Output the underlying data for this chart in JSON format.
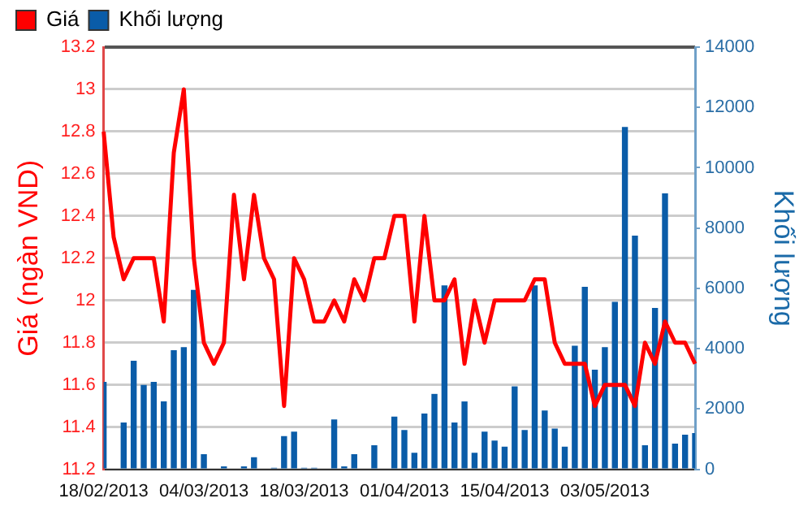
{
  "chart_data": {
    "type": "line",
    "categories": [
      "18/02/2013",
      null,
      null,
      null,
      null,
      null,
      null,
      null,
      null,
      null,
      "04/03/2013",
      null,
      null,
      null,
      null,
      null,
      null,
      null,
      null,
      null,
      "18/03/2013",
      null,
      null,
      null,
      null,
      null,
      null,
      null,
      null,
      null,
      "01/04/2013",
      null,
      null,
      null,
      null,
      null,
      null,
      null,
      null,
      null,
      "15/04/2013",
      null,
      null,
      null,
      null,
      null,
      null,
      null,
      null,
      null,
      "03/05/2013",
      null,
      null,
      null,
      null,
      null,
      null,
      null,
      null,
      null
    ],
    "series": [
      {
        "name": "Giá",
        "color": "#ff0000",
        "values": [
          12.8,
          12.3,
          12.1,
          12.2,
          12.2,
          12.2,
          11.9,
          12.7,
          13.0,
          12.2,
          11.8,
          11.7,
          11.8,
          12.5,
          12.1,
          12.5,
          12.2,
          12.1,
          11.5,
          12.2,
          12.1,
          11.9,
          11.9,
          12.0,
          11.9,
          12.1,
          12.0,
          12.2,
          12.2,
          12.4,
          12.4,
          11.9,
          12.4,
          12.0,
          12.0,
          12.1,
          11.7,
          12.0,
          11.8,
          12.0,
          12.0,
          12.0,
          12.0,
          12.1,
          12.1,
          11.8,
          11.7,
          11.7,
          11.7,
          11.5,
          11.6,
          11.6,
          11.6,
          11.5,
          11.8,
          11.7,
          11.9,
          11.8,
          11.8,
          11.7
        ]
      },
      {
        "name": "Khối lượng",
        "type": "bar",
        "axis": "y2",
        "color": "#0a5ca8",
        "values": [
          2900,
          0,
          1550,
          3600,
          2800,
          2900,
          2250,
          3950,
          4050,
          5950,
          500,
          0,
          100,
          0,
          100,
          400,
          0,
          50,
          1100,
          1250,
          50,
          50,
          0,
          1650,
          100,
          500,
          0,
          800,
          0,
          1750,
          1300,
          550,
          1850,
          2500,
          6100,
          1550,
          2250,
          550,
          1250,
          950,
          750,
          2750,
          1300,
          6100,
          1950,
          1350,
          750,
          4100,
          6050,
          3300,
          4050,
          5550,
          11350,
          7750,
          800,
          5350,
          9150,
          850,
          1150,
          1200
        ]
      }
    ],
    "ylabel": "Giá (ngàn VND)",
    "y2label": "Khối lượng",
    "ylim": [
      11.2,
      13.2
    ],
    "yticks": [
      11.2,
      11.4,
      11.6,
      11.8,
      12,
      12.2,
      12.4,
      12.6,
      12.8,
      13,
      13.2
    ],
    "y2lim": [
      0,
      14000
    ],
    "y2ticks": [
      0,
      2000,
      4000,
      6000,
      8000,
      10000,
      12000,
      14000
    ],
    "grid": "y",
    "legend": "top left",
    "marker": "none"
  }
}
